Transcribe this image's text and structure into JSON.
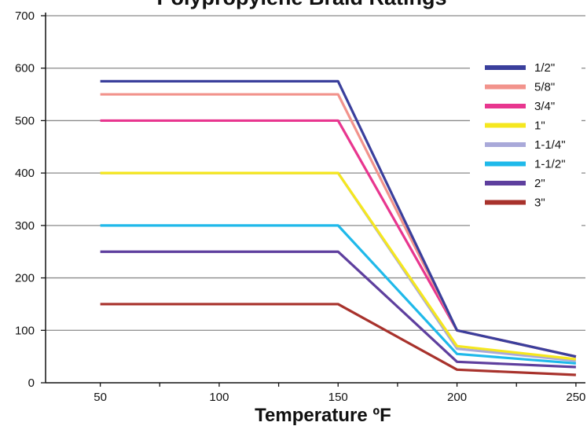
{
  "chart_data": {
    "type": "line",
    "title": "Polypropylene Braid Ratings",
    "xlabel": "Temperature ºF",
    "ylabel": "",
    "x": [
      50,
      150,
      200,
      250
    ],
    "x_ticks": [
      "50",
      "100",
      "150",
      "200",
      "250"
    ],
    "x_tick_values": [
      50,
      100,
      150,
      200,
      250
    ],
    "y_ticks": [
      "0",
      "100",
      "200",
      "300",
      "400",
      "500",
      "600",
      "700"
    ],
    "y_tick_values": [
      0,
      100,
      200,
      300,
      400,
      500,
      600,
      700
    ],
    "xlim": [
      27,
      254
    ],
    "ylim": [
      0,
      700
    ],
    "grid": "horizontal",
    "legend_position": "right",
    "series": [
      {
        "name": "1/2\"",
        "color": "#3a3f9c",
        "values": [
          575,
          575,
          100,
          50
        ]
      },
      {
        "name": "5/8\"",
        "color": "#f2938c",
        "values": [
          550,
          550,
          100,
          50
        ]
      },
      {
        "name": "3/4\"",
        "color": "#e8368f",
        "values": [
          500,
          500,
          100,
          50
        ]
      },
      {
        "name": "1\"",
        "color": "#f5e71f",
        "values": [
          400,
          400,
          70,
          45
        ]
      },
      {
        "name": "1-1/4\"",
        "color": "#a9a9d9",
        "values": [
          400,
          400,
          65,
          42
        ]
      },
      {
        "name": "1-1/2\"",
        "color": "#1fb9ea",
        "values": [
          300,
          300,
          55,
          37
        ]
      },
      {
        "name": "2\"",
        "color": "#5e3f9e",
        "values": [
          250,
          250,
          40,
          30
        ]
      },
      {
        "name": "3\"",
        "color": "#a8322c",
        "values": [
          150,
          150,
          25,
          15
        ]
      }
    ]
  }
}
